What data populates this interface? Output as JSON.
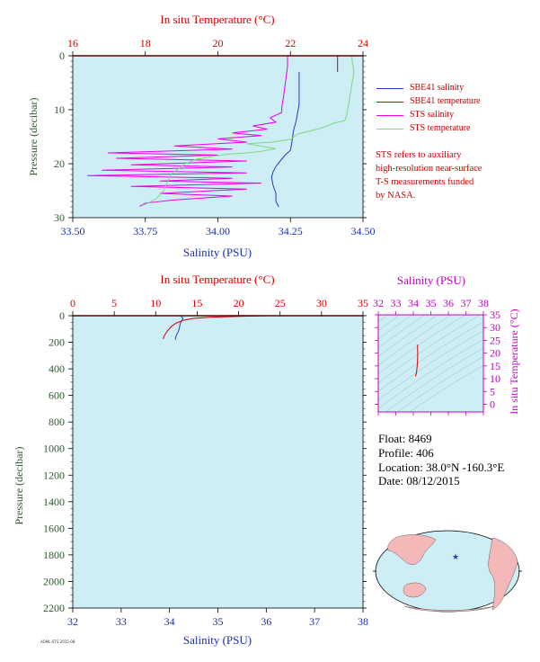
{
  "colors": {
    "plot_bg": "#cdeef5",
    "sbe41_salinity": "#1f3fbf",
    "sbe41_temperature": "#d40000",
    "sts_salinity": "#ee00ee",
    "sts_temperature": "#7fd87f",
    "axis_red": "#d40000",
    "axis_blue": "#1a2fb0",
    "axis_green": "#2a5a2a",
    "axis_magenta": "#c000c0"
  },
  "legend": {
    "sbe41_salinity": "SBE41 salinity",
    "sbe41_temperature": "SBE41 temperature",
    "sts_salinity": "STS salinity",
    "sts_temperature": "STS temperature"
  },
  "note_lines": [
    "STS refers to auxiliary",
    "high-resolution near-surface",
    "T-S measurements funded",
    "by NASA."
  ],
  "float_info": {
    "float": "Float:  8469",
    "profile": "Profile:  406",
    "location": "Location:  38.0°N  -160.3°E",
    "date": "Date:  08/12/2015"
  },
  "footer_text": "AOML-STS 2015-08",
  "chart_data": [
    {
      "id": "top",
      "type": "line",
      "title": "",
      "top_axis_label": "In situ Temperature (°C)",
      "bottom_axis_label": "Salinity (PSU)",
      "left_axis_label": "Pressure (decibar)",
      "temp_range": [
        16,
        24
      ],
      "temp_ticks": [
        "16",
        "18",
        "20",
        "22",
        "24"
      ],
      "sal_range": [
        33.5,
        34.5
      ],
      "sal_ticks": [
        "33.50",
        "33.75",
        "34.00",
        "34.25",
        "34.50"
      ],
      "pressure_range": [
        0,
        30
      ],
      "pressure_ticks": [
        "0",
        "10",
        "20",
        "30"
      ],
      "series": [
        {
          "name": "SBE41 salinity",
          "axis": "salinity",
          "points": [
            [
              34.28,
              3
            ],
            [
              34.28,
              6
            ],
            [
              34.28,
              9
            ],
            [
              34.27,
              12
            ],
            [
              34.26,
              14
            ],
            [
              34.255,
              16
            ],
            [
              34.25,
              17.5
            ],
            [
              34.23,
              18.5
            ],
            [
              34.215,
              19.5
            ],
            [
              34.2,
              20.5
            ],
            [
              34.19,
              21.5
            ],
            [
              34.185,
              22.5
            ],
            [
              34.19,
              24
            ],
            [
              34.2,
              25.5
            ],
            [
              34.2,
              27
            ],
            [
              34.21,
              28
            ]
          ]
        },
        {
          "name": "SBE41 temperature",
          "axis": "temperature",
          "points": [
            [
              23.3,
              0
            ],
            [
              23.3,
              3
            ]
          ]
        },
        {
          "name": "STS salinity",
          "axis": "salinity",
          "points": [
            [
              34.24,
              0
            ],
            [
              34.24,
              2
            ],
            [
              34.235,
              4
            ],
            [
              34.23,
              6
            ],
            [
              34.225,
              8
            ],
            [
              34.22,
              9.5
            ],
            [
              34.22,
              10.5
            ],
            [
              34.18,
              11.5
            ],
            [
              34.2,
              12.3
            ],
            [
              34.12,
              13
            ],
            [
              34.17,
              13.6
            ],
            [
              34.05,
              14.3
            ],
            [
              34.15,
              14.8
            ],
            [
              34.0,
              15.4
            ],
            [
              34.1,
              16
            ],
            [
              33.85,
              16.7
            ],
            [
              34.05,
              17.3
            ],
            [
              33.62,
              18
            ],
            [
              34.0,
              18.4
            ],
            [
              33.65,
              19
            ],
            [
              34.1,
              19.5
            ],
            [
              33.7,
              20.2
            ],
            [
              34.05,
              20.6
            ],
            [
              33.6,
              21.2
            ],
            [
              34.1,
              21.7
            ],
            [
              33.55,
              22.2
            ],
            [
              34.05,
              22.7
            ],
            [
              33.8,
              23.2
            ],
            [
              34.15,
              23.6
            ],
            [
              33.7,
              24.2
            ],
            [
              34.1,
              24.7
            ],
            [
              33.8,
              25.5
            ],
            [
              34.05,
              26
            ],
            [
              33.85,
              26.7
            ],
            [
              33.75,
              27.3
            ],
            [
              33.73,
              27.9
            ]
          ]
        },
        {
          "name": "STS temperature",
          "axis": "temperature",
          "points": [
            [
              23.7,
              0
            ],
            [
              23.7,
              1
            ],
            [
              23.75,
              3
            ],
            [
              23.7,
              5
            ],
            [
              23.65,
              7
            ],
            [
              23.6,
              9
            ],
            [
              23.55,
              11
            ],
            [
              23.5,
              12
            ],
            [
              23.2,
              12.5
            ],
            [
              22.8,
              13.5
            ],
            [
              22.2,
              14.5
            ],
            [
              22.0,
              15.5
            ],
            [
              21.5,
              16
            ],
            [
              20.8,
              16.3
            ],
            [
              21.6,
              17.2
            ],
            [
              21.2,
              17.7
            ],
            [
              20.8,
              18
            ],
            [
              20.3,
              18.2
            ],
            [
              19.9,
              18.6
            ],
            [
              19.4,
              19.2
            ],
            [
              19.1,
              20
            ],
            [
              18.9,
              21
            ],
            [
              18.7,
              22
            ],
            [
              18.6,
              23.5
            ],
            [
              18.5,
              25
            ],
            [
              18.3,
              26.5
            ],
            [
              18.1,
              27.2
            ],
            [
              17.9,
              27.8
            ]
          ]
        }
      ]
    },
    {
      "id": "bottom",
      "type": "line",
      "title": "",
      "top_axis_label": "In situ Temperature (°C)",
      "bottom_axis_label": "Salinity (PSU)",
      "left_axis_label": "Pressure (decibar)",
      "temp_range": [
        0,
        35
      ],
      "temp_ticks": [
        "0",
        "5",
        "10",
        "15",
        "20",
        "25",
        "30",
        "35"
      ],
      "sal_range": [
        32,
        38
      ],
      "sal_ticks": [
        "32",
        "33",
        "34",
        "35",
        "36",
        "37",
        "38"
      ],
      "pressure_range": [
        0,
        2200
      ],
      "pressure_ticks": [
        "0",
        "200",
        "400",
        "600",
        "800",
        "1000",
        "1200",
        "1400",
        "1600",
        "1800",
        "2000",
        "2200"
      ],
      "series": [
        {
          "name": "SBE41 salinity",
          "axis": "salinity",
          "points": [
            [
              34.24,
              0
            ],
            [
              34.24,
              5
            ],
            [
              34.28,
              20
            ],
            [
              34.25,
              40
            ],
            [
              34.22,
              60
            ],
            [
              34.21,
              80
            ],
            [
              34.2,
              100
            ],
            [
              34.18,
              120
            ],
            [
              34.15,
              140
            ],
            [
              34.13,
              160
            ],
            [
              34.12,
              180
            ]
          ]
        },
        {
          "name": "SBE41 temperature",
          "axis": "temperature",
          "points": [
            [
              23.3,
              0
            ],
            [
              20,
              5
            ],
            [
              16.5,
              12
            ],
            [
              14.5,
              20
            ],
            [
              13.3,
              35
            ],
            [
              12.5,
              55
            ],
            [
              12,
              75
            ],
            [
              11.7,
              95
            ],
            [
              11.4,
              115
            ],
            [
              11.2,
              135
            ],
            [
              11.0,
              155
            ],
            [
              10.9,
              175
            ]
          ]
        }
      ]
    },
    {
      "id": "ts_inset",
      "type": "line",
      "title": "",
      "top_axis_label": "Salinity (PSU)",
      "right_axis_label": "In situ Temperature (°C)",
      "sal_range": [
        32,
        38
      ],
      "sal_ticks": [
        "32",
        "33",
        "34",
        "35",
        "36",
        "37",
        "38"
      ],
      "temp_range": [
        -3,
        35
      ],
      "temp_ticks": [
        "0",
        "5",
        "10",
        "15",
        "20",
        "25",
        "30",
        "35"
      ],
      "series": [
        {
          "name": "T-S",
          "points": [
            [
              34.24,
              23.3
            ],
            [
              34.25,
              20
            ],
            [
              34.24,
              17
            ],
            [
              34.22,
              15
            ],
            [
              34.2,
              13.5
            ],
            [
              34.18,
              12.3
            ],
            [
              34.15,
              11.5
            ],
            [
              34.12,
              10.9
            ]
          ]
        }
      ]
    }
  ],
  "map": {
    "marker": "star"
  }
}
